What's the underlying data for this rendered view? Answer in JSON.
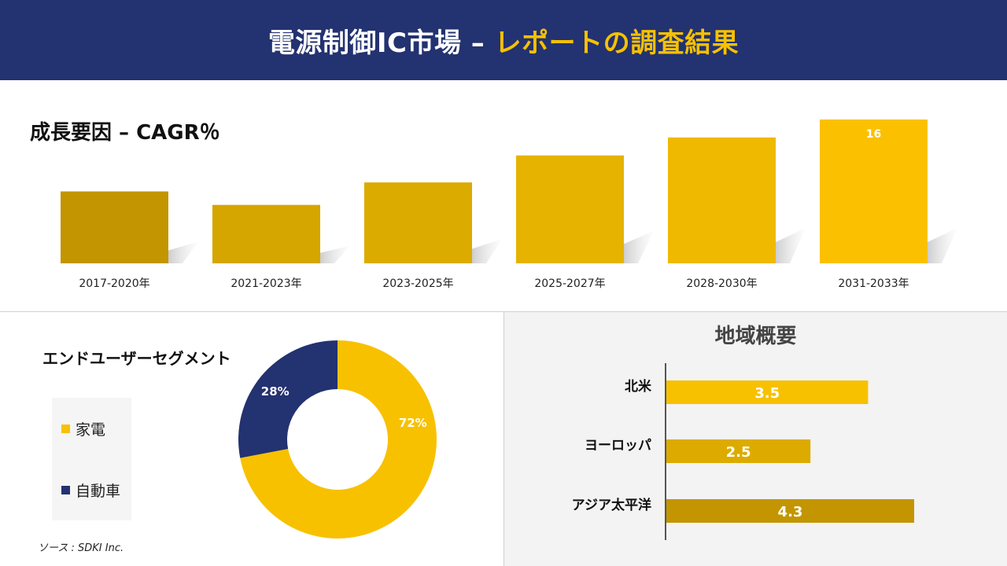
{
  "header": {
    "title_main": "電源制御IC市場 – ",
    "title_accent": "レポートの調査結果"
  },
  "growth": {
    "title": "成長要因 – CAGR％"
  },
  "end_user": {
    "title": "エンドユーザーセグメント",
    "legend": [
      {
        "label": "家電",
        "color": "#f7c100"
      },
      {
        "label": "自動車",
        "color": "#233270"
      }
    ]
  },
  "region": {
    "title": "地域概要"
  },
  "source": "ソース : SDKI Inc.",
  "colors": {
    "navy": "#233270",
    "gold": "#f7c100"
  },
  "chart_data": [
    {
      "type": "bar",
      "title": "成長要因 – CAGR％",
      "categories": [
        "2017-2020年",
        "2021-2023年",
        "2023-2025年",
        "2025-2027年",
        "2028-2030年",
        "2031-2033年"
      ],
      "values": [
        8,
        6.5,
        9,
        12,
        14,
        16
      ],
      "data_labels": [
        "",
        "",
        "",
        "",
        "",
        "16"
      ],
      "colors": [
        "#c39500",
        "#d5a500",
        "#dcab00",
        "#e5b300",
        "#efb900",
        "#fbc100"
      ],
      "ylim": [
        0,
        16
      ],
      "grid": false
    },
    {
      "type": "pie",
      "title": "エンドユーザーセグメント",
      "categories": [
        "家電",
        "自動車"
      ],
      "values": [
        72,
        28
      ],
      "labels": [
        "72%",
        "28%"
      ],
      "colors": [
        "#f7c100",
        "#233270"
      ]
    },
    {
      "type": "bar",
      "orientation": "horizontal",
      "title": "地域概要",
      "categories": [
        "北米",
        "ヨーロッパ",
        "アジア太平洋"
      ],
      "values": [
        3.5,
        2.5,
        4.3
      ],
      "labels": [
        "3.5",
        "2.5",
        "4.3"
      ],
      "colors": [
        "#f7c100",
        "#ddab00",
        "#c39500"
      ],
      "xlim": [
        0,
        4.3
      ]
    }
  ]
}
